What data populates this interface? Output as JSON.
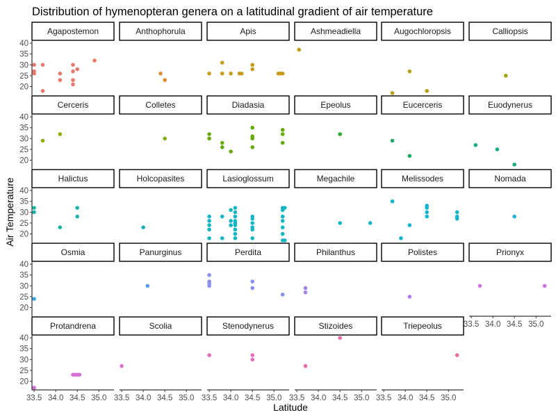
{
  "chart_data": {
    "type": "scatter",
    "title": "Distribution of hymenopteran genera on a latitudinal gradient of air temperature",
    "xlabel": "Latitude",
    "ylabel": "Air Temperature",
    "xlim": [
      33.45,
      35.35
    ],
    "ylim": [
      16,
      41
    ],
    "x_ticks": [
      "33.5",
      "34.0",
      "34.5",
      "35.0"
    ],
    "x_tick_values": [
      33.5,
      34.0,
      34.5,
      35.0
    ],
    "y_ticks": [
      "20",
      "25",
      "30",
      "35",
      "40"
    ],
    "y_tick_values": [
      20,
      25,
      30,
      35,
      40
    ],
    "layout": "facet grid, 6 columns by 5 rows, shared axes",
    "grid": false,
    "legend": "none",
    "panels": [
      {
        "name": "Agapostemon",
        "color": "#E8776C",
        "points": [
          [
            33.5,
            27
          ],
          [
            33.5,
            26
          ],
          [
            33.5,
            30
          ],
          [
            33.7,
            30
          ],
          [
            33.7,
            18
          ],
          [
            34.1,
            26
          ],
          [
            34.1,
            23
          ],
          [
            34.4,
            30
          ],
          [
            34.4,
            27
          ],
          [
            34.4,
            23
          ],
          [
            34.4,
            21
          ],
          [
            34.5,
            28
          ],
          [
            34.9,
            32
          ]
        ]
      },
      {
        "name": "Anthophorula",
        "color": "#DE8C2F",
        "points": [
          [
            34.4,
            26
          ],
          [
            34.5,
            23
          ]
        ]
      },
      {
        "name": "Apis",
        "color": "#C89A19",
        "points": [
          [
            33.5,
            26
          ],
          [
            33.8,
            31
          ],
          [
            33.8,
            26
          ],
          [
            34.0,
            26
          ],
          [
            34.2,
            26
          ],
          [
            34.25,
            26
          ],
          [
            34.5,
            30
          ],
          [
            34.5,
            28
          ],
          [
            35.1,
            26
          ],
          [
            35.15,
            26
          ],
          [
            35.2,
            26
          ]
        ]
      },
      {
        "name": "Ashmeadiella",
        "color": "#BA9E12",
        "points": [
          [
            33.55,
            37
          ]
        ]
      },
      {
        "name": "Augochloropsis",
        "color": "#BA9E12",
        "points": [
          [
            33.7,
            17
          ],
          [
            34.1,
            27
          ],
          [
            34.5,
            18
          ]
        ]
      },
      {
        "name": "Calliopsis",
        "color": "#A6A310",
        "points": [
          [
            34.3,
            25
          ]
        ]
      },
      {
        "name": "Cerceris",
        "color": "#93AA06",
        "points": [
          [
            33.7,
            29
          ],
          [
            34.1,
            32
          ]
        ]
      },
      {
        "name": "Colletes",
        "color": "#84AC0D",
        "points": [
          [
            34.5,
            30
          ]
        ]
      },
      {
        "name": "Diadasia",
        "color": "#66AA08",
        "points": [
          [
            33.5,
            32
          ],
          [
            33.5,
            30
          ],
          [
            33.8,
            28
          ],
          [
            33.8,
            26
          ],
          [
            34.0,
            24
          ],
          [
            34.5,
            35
          ],
          [
            34.5,
            31
          ],
          [
            34.5,
            30
          ],
          [
            34.5,
            26
          ],
          [
            35.2,
            34
          ],
          [
            35.2,
            32
          ],
          [
            35.2,
            28
          ]
        ]
      },
      {
        "name": "Epeolus",
        "color": "#2EAA29",
        "points": [
          [
            34.5,
            32
          ]
        ]
      },
      {
        "name": "Eucerceris",
        "color": "#1BAA6A",
        "points": [
          [
            33.7,
            29
          ],
          [
            34.1,
            22
          ]
        ]
      },
      {
        "name": "Euodynerus",
        "color": "#1BAA86",
        "points": [
          [
            33.6,
            27
          ],
          [
            34.1,
            25
          ],
          [
            34.5,
            18
          ]
        ]
      },
      {
        "name": "Halictus",
        "color": "#1BB3AA",
        "points": [
          [
            33.5,
            32
          ],
          [
            33.5,
            30
          ],
          [
            34.1,
            23
          ],
          [
            34.5,
            32
          ],
          [
            34.5,
            28
          ]
        ]
      },
      {
        "name": "Holcopasites",
        "color": "#19B2B0",
        "points": [
          [
            34.0,
            23
          ]
        ]
      },
      {
        "name": "Lasioglossum",
        "color": "#13B5C1",
        "points": [
          [
            33.5,
            28
          ],
          [
            33.5,
            26
          ],
          [
            33.5,
            24
          ],
          [
            33.5,
            22
          ],
          [
            33.5,
            18
          ],
          [
            33.8,
            28
          ],
          [
            33.8,
            18
          ],
          [
            34.0,
            31
          ],
          [
            34.0,
            26
          ],
          [
            34.0,
            24
          ],
          [
            34.1,
            32
          ],
          [
            34.1,
            30
          ],
          [
            34.1,
            28
          ],
          [
            34.1,
            26
          ],
          [
            34.1,
            25
          ],
          [
            34.1,
            24
          ],
          [
            34.1,
            22
          ],
          [
            34.1,
            20
          ],
          [
            34.1,
            18
          ],
          [
            34.5,
            28
          ],
          [
            34.5,
            27
          ],
          [
            34.5,
            25
          ],
          [
            34.5,
            23
          ],
          [
            34.5,
            22
          ],
          [
            34.5,
            18
          ],
          [
            35.2,
            32
          ],
          [
            35.2,
            31
          ],
          [
            35.2,
            28
          ],
          [
            35.2,
            26
          ],
          [
            35.2,
            23
          ],
          [
            35.2,
            20
          ],
          [
            35.2,
            17
          ],
          [
            35.25,
            32
          ],
          [
            35.25,
            17
          ]
        ]
      },
      {
        "name": "Megachile",
        "color": "#13B5C8",
        "points": [
          [
            34.5,
            25
          ],
          [
            35.2,
            25
          ]
        ]
      },
      {
        "name": "Melissodes",
        "color": "#12B4CE",
        "points": [
          [
            33.7,
            35
          ],
          [
            33.9,
            18
          ],
          [
            34.1,
            24
          ],
          [
            34.5,
            33
          ],
          [
            34.5,
            32
          ],
          [
            34.5,
            30
          ],
          [
            34.5,
            28
          ],
          [
            35.2,
            30
          ],
          [
            35.2,
            28
          ],
          [
            35.2,
            27
          ]
        ]
      },
      {
        "name": "Nomada",
        "color": "#22AED8",
        "points": [
          [
            34.5,
            28
          ]
        ]
      },
      {
        "name": "Osmia",
        "color": "#37A4E4",
        "points": [
          [
            33.5,
            24
          ]
        ]
      },
      {
        "name": "Panurginus",
        "color": "#5C9BEA",
        "points": [
          [
            34.1,
            30
          ]
        ]
      },
      {
        "name": "Perdita",
        "color": "#8A8FE8",
        "points": [
          [
            33.5,
            35
          ],
          [
            33.5,
            32
          ],
          [
            33.5,
            31
          ],
          [
            33.5,
            30
          ],
          [
            34.5,
            32
          ],
          [
            34.5,
            29
          ],
          [
            35.2,
            26
          ]
        ]
      },
      {
        "name": "Philanthus",
        "color": "#A184E8",
        "points": [
          [
            33.7,
            29
          ],
          [
            33.7,
            27
          ]
        ]
      },
      {
        "name": "Polistes",
        "color": "#B37AE8",
        "points": [
          [
            34.1,
            25
          ]
        ]
      },
      {
        "name": "Prionyx",
        "color": "#C972E0",
        "points": [
          [
            33.7,
            30
          ],
          [
            35.2,
            30
          ]
        ]
      },
      {
        "name": "Protandrena",
        "color": "#D56FD8",
        "points": [
          [
            33.5,
            17
          ],
          [
            34.4,
            23
          ],
          [
            34.45,
            23
          ],
          [
            34.5,
            23
          ],
          [
            34.55,
            23
          ]
        ]
      },
      {
        "name": "Scolia",
        "color": "#E06CCB",
        "points": [
          [
            33.5,
            27
          ]
        ]
      },
      {
        "name": "Stenodynerus",
        "color": "#E56ABA",
        "points": [
          [
            33.5,
            32
          ],
          [
            34.5,
            32
          ],
          [
            34.5,
            30
          ]
        ]
      },
      {
        "name": "Stizoides",
        "color": "#EA6AA8",
        "points": [
          [
            33.7,
            27
          ],
          [
            34.5,
            40
          ]
        ]
      },
      {
        "name": "Triepeolus",
        "color": "#EA6C94",
        "points": [
          [
            35.2,
            32
          ]
        ]
      }
    ]
  }
}
